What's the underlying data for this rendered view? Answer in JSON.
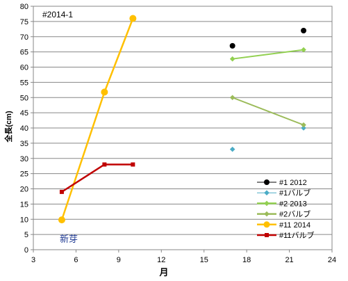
{
  "chart_data": {
    "type": "scatter",
    "title": "",
    "inner_label": "#2014-1",
    "annotation": "新芽",
    "xlabel": "月",
    "ylabel": "全長(cm)",
    "xlim": [
      3,
      24
    ],
    "ylim": [
      0,
      80
    ],
    "xticks": [
      3,
      6,
      9,
      12,
      15,
      18,
      21,
      24
    ],
    "yticks": [
      0,
      5,
      10,
      15,
      20,
      25,
      30,
      35,
      40,
      45,
      50,
      55,
      60,
      65,
      70,
      75,
      80
    ],
    "grid": "horizontal",
    "legend_position": "bottom-right",
    "series": [
      {
        "name": "#1 2012",
        "color": "#000000",
        "marker": "circle",
        "line": false,
        "x": [
          17,
          22
        ],
        "y": [
          67,
          72
        ]
      },
      {
        "name": "#1バルブ",
        "color": "#4bacc6",
        "marker": "diamond",
        "line": false,
        "x": [
          17,
          22
        ],
        "y": [
          33,
          40
        ]
      },
      {
        "name": "#2 2013",
        "color": "#92d050",
        "marker": "diamond",
        "line": true,
        "x": [
          17,
          22
        ],
        "y": [
          62.7,
          65.7
        ]
      },
      {
        "name": "#2バルブ",
        "color": "#9bbb59",
        "marker": "diamond",
        "line": true,
        "x": [
          17,
          22
        ],
        "y": [
          50,
          41
        ]
      },
      {
        "name": "#11 2014",
        "color": "#ffc000",
        "marker": "circle",
        "line": true,
        "x": [
          5,
          8,
          10
        ],
        "y": [
          9.8,
          51.8,
          76
        ]
      },
      {
        "name": "#11バルブ",
        "color": "#c00000",
        "marker": "square",
        "line": true,
        "x": [
          5,
          8,
          10
        ],
        "y": [
          19,
          28,
          28
        ]
      }
    ]
  }
}
